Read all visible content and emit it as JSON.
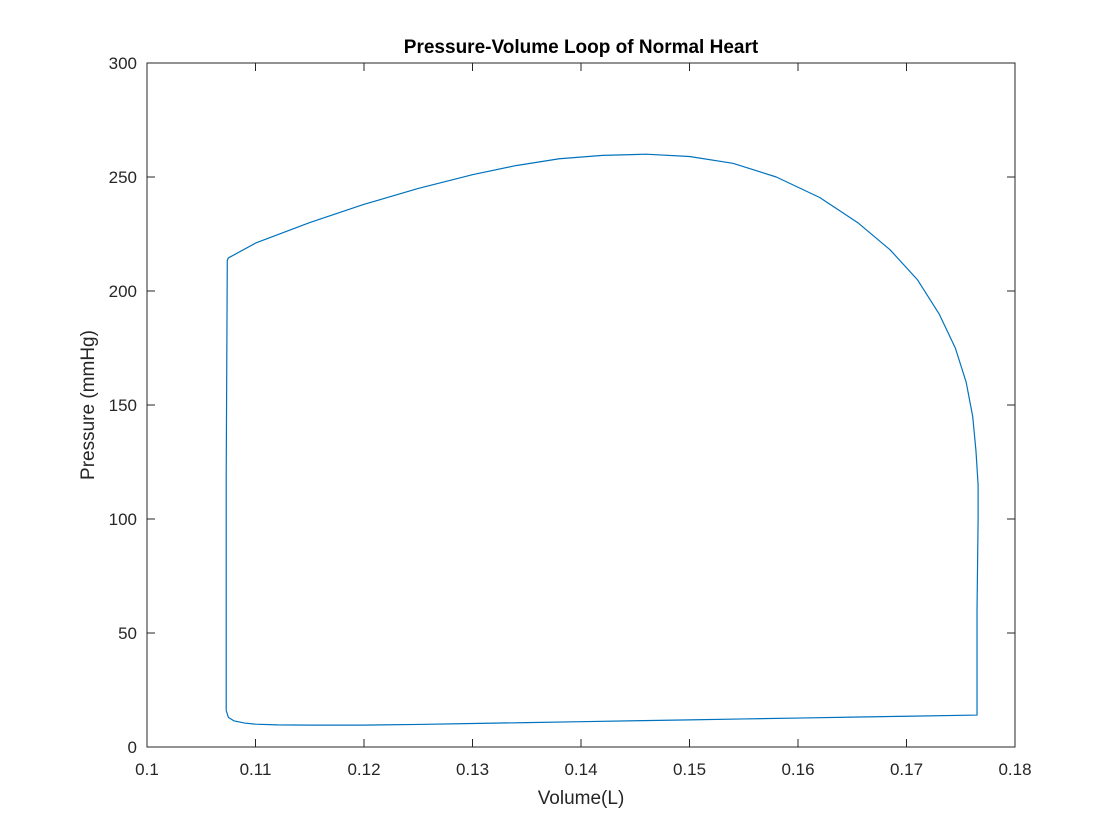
{
  "chart_data": {
    "type": "line",
    "title": "Pressure-Volume Loop of Normal Heart",
    "xlabel": "Volume(L)",
    "ylabel": "Pressure (mmHg)",
    "xlim": [
      0.1,
      0.18
    ],
    "ylim": [
      0,
      300
    ],
    "x_ticks": [
      0.1,
      0.11,
      0.12,
      0.13,
      0.14,
      0.15,
      0.16,
      0.17,
      0.18
    ],
    "x_tick_labels": [
      "0.1",
      "0.11",
      "0.12",
      "0.13",
      "0.14",
      "0.15",
      "0.16",
      "0.17",
      "0.18"
    ],
    "y_ticks": [
      0,
      50,
      100,
      150,
      200,
      250,
      300
    ],
    "y_tick_labels": [
      "0",
      "50",
      "100",
      "150",
      "200",
      "250",
      "300"
    ],
    "grid": false,
    "box": true,
    "series": [
      {
        "color": "#0072BD",
        "x": [
          0.1073,
          0.1075,
          0.108,
          0.109,
          0.11,
          0.112,
          0.115,
          0.12,
          0.125,
          0.13,
          0.135,
          0.14,
          0.145,
          0.15,
          0.155,
          0.16,
          0.165,
          0.17,
          0.1765,
          0.1765,
          0.1766,
          0.1766,
          0.1764,
          0.1761,
          0.1755,
          0.1745,
          0.173,
          0.171,
          0.1685,
          0.1655,
          0.162,
          0.158,
          0.154,
          0.15,
          0.146,
          0.142,
          0.138,
          0.134,
          0.13,
          0.125,
          0.12,
          0.115,
          0.11,
          0.1075,
          0.1074,
          0.1073,
          0.1073
        ],
        "y": [
          16,
          13,
          11.5,
          10.5,
          10,
          9.7,
          9.6,
          9.6,
          9.9,
          10.3,
          10.7,
          11.1,
          11.5,
          11.9,
          12.3,
          12.7,
          13.1,
          13.5,
          14,
          60,
          100,
          115,
          130,
          145,
          160,
          175,
          190,
          205,
          218,
          230,
          241,
          250,
          256,
          259,
          260,
          259.5,
          258,
          255,
          251,
          245,
          238,
          230,
          221,
          214.5,
          213.5,
          120,
          16
        ]
      }
    ]
  }
}
